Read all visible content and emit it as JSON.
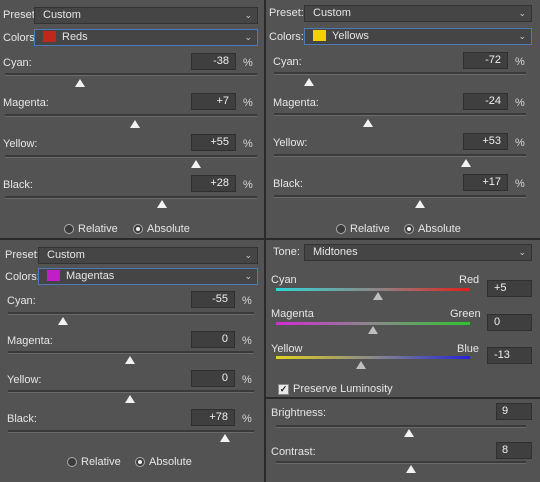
{
  "colors": {
    "reds": "#c0281c",
    "yellows": "#f2d100",
    "magentas": "#c21ec8"
  },
  "tl": {
    "preset_label": "Preset:",
    "preset_value": "Custom",
    "colors_label": "Colors:",
    "colors_value": "Reds",
    "sliders": [
      {
        "label": "Cyan:",
        "value": "-38",
        "unit": "%",
        "level": -38
      },
      {
        "label": "Magenta:",
        "value": "+7",
        "unit": "%",
        "level": 7
      },
      {
        "label": "Yellow:",
        "value": "+55",
        "unit": "%",
        "level": 55
      },
      {
        "label": "Black:",
        "value": "+28",
        "unit": "%",
        "level": 28
      }
    ],
    "relative_label": "Relative",
    "absolute_label": "Absolute",
    "mode": "absolute"
  },
  "tr": {
    "preset_label": "Preset:",
    "preset_value": "Custom",
    "colors_label": "Colors:",
    "colors_value": "Yellows",
    "sliders": [
      {
        "label": "Cyan:",
        "value": "-72",
        "unit": "%",
        "level": -72
      },
      {
        "label": "Magenta:",
        "value": "-24",
        "unit": "%",
        "level": -24
      },
      {
        "label": "Yellow:",
        "value": "+53",
        "unit": "%",
        "level": 53
      },
      {
        "label": "Black:",
        "value": "+17",
        "unit": "%",
        "level": 17
      }
    ],
    "relative_label": "Relative",
    "absolute_label": "Absolute",
    "mode": "absolute"
  },
  "bl": {
    "preset_label": "Preset:",
    "preset_value": "Custom",
    "colors_label": "Colors:",
    "colors_value": "Magentas",
    "sliders": [
      {
        "label": "Cyan:",
        "value": "-55",
        "unit": "%",
        "level": -55
      },
      {
        "label": "Magenta:",
        "value": "0",
        "unit": "%",
        "level": 0
      },
      {
        "label": "Yellow:",
        "value": "0",
        "unit": "%",
        "level": 0
      },
      {
        "label": "Black:",
        "value": "+78",
        "unit": "%",
        "level": 78
      }
    ],
    "relative_label": "Relative",
    "absolute_label": "Absolute",
    "mode": "absolute"
  },
  "cb": {
    "tone_label": "Tone:",
    "tone_value": "Midtones",
    "rows": [
      {
        "left": "Cyan",
        "right": "Red",
        "value": "+5",
        "level": 5
      },
      {
        "left": "Magenta",
        "right": "Green",
        "value": "0",
        "level": 0
      },
      {
        "left": "Yellow",
        "right": "Blue",
        "value": "-13",
        "level": -13
      }
    ],
    "preserve_label": "Preserve Luminosity",
    "preserve_checked": true
  },
  "bc": {
    "brightness_label": "Brightness:",
    "brightness_value": "9",
    "brightness_level": 9,
    "contrast_label": "Contrast:",
    "contrast_value": "8",
    "contrast_level": 8
  }
}
